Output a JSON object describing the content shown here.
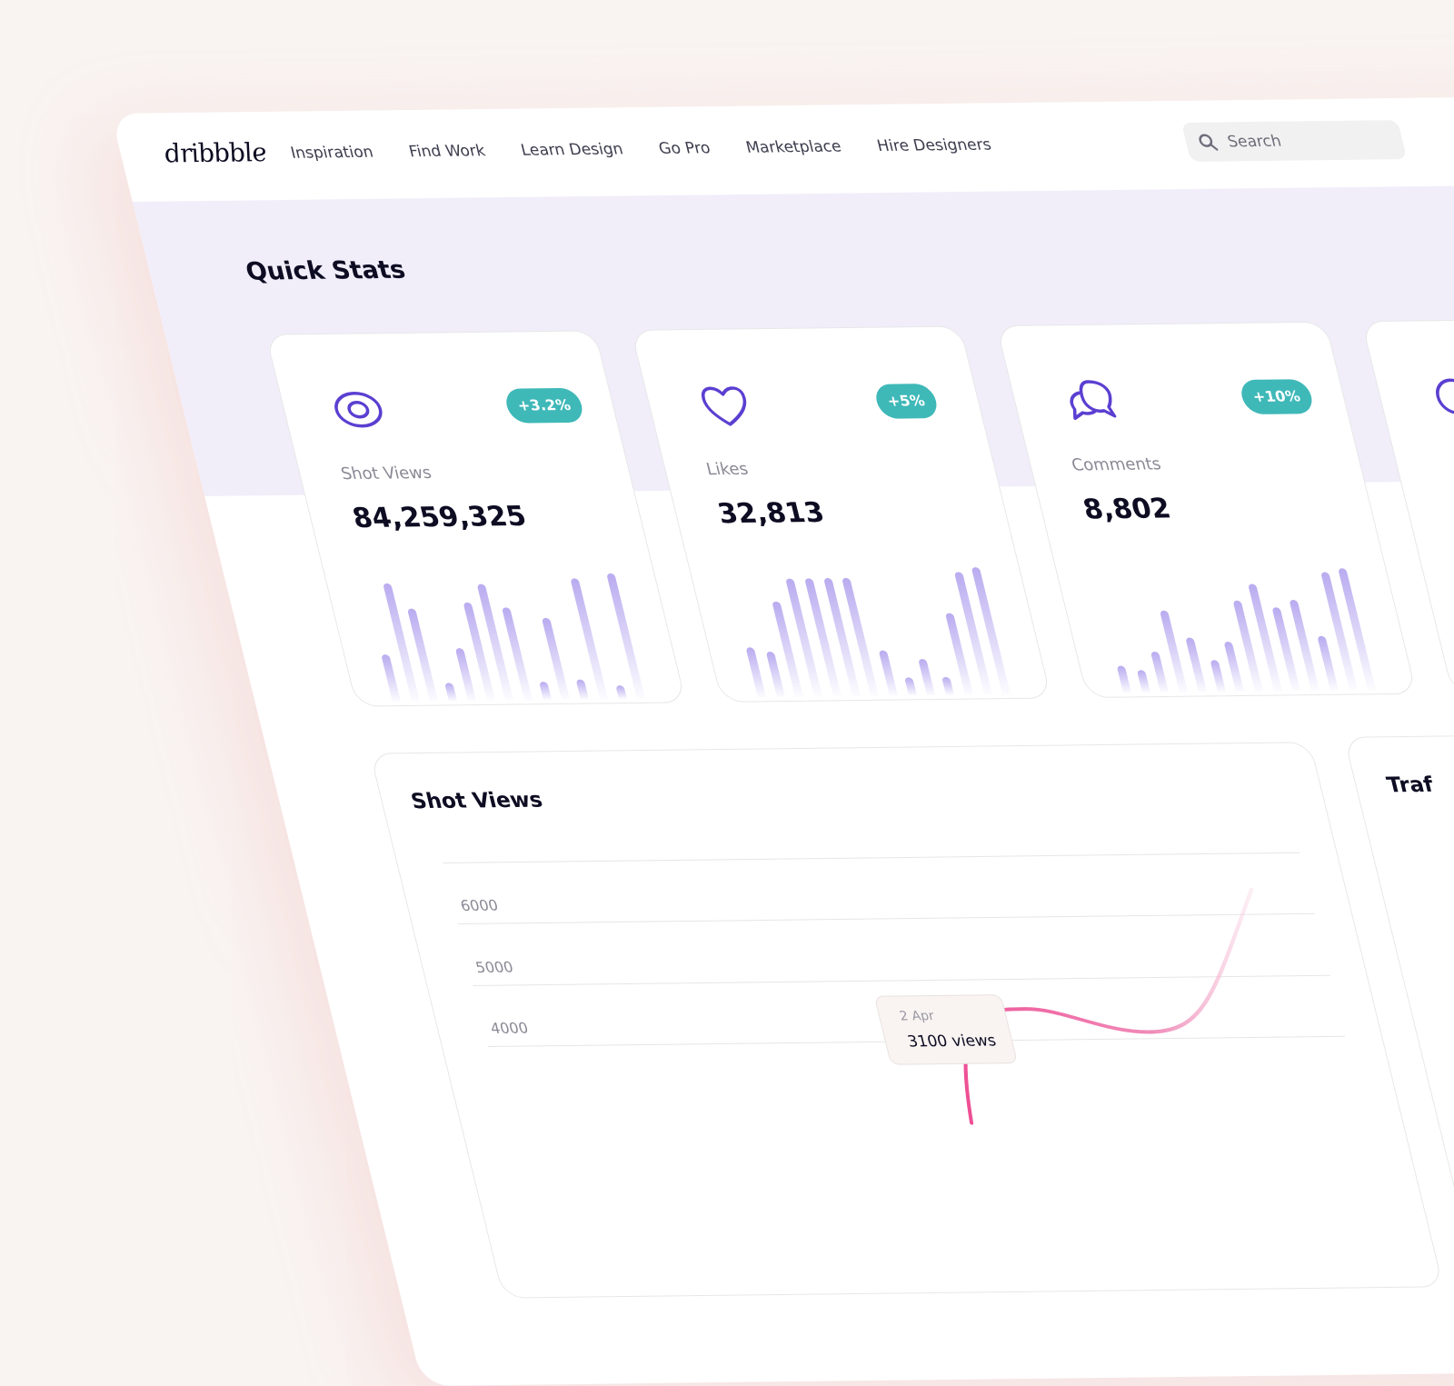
{
  "header": {
    "logo": "dribbble",
    "nav": [
      "Inspiration",
      "Find Work",
      "Learn Design",
      "Go Pro",
      "Marketplace",
      "Hire Designers"
    ],
    "search_placeholder": "Search"
  },
  "quick_stats": {
    "title": "Quick Stats",
    "cards": [
      {
        "icon": "eye-icon",
        "badge": "+3.2%",
        "label": "Shot Views",
        "value": "84,259,325",
        "bars": [
          52,
          130,
          102,
          20,
          58,
          108,
          128,
          102,
          20,
          90,
          22,
          133,
          15,
          138
        ]
      },
      {
        "icon": "heart-icon",
        "badge": "+5%",
        "label": "Likes",
        "value": "32,813",
        "bars": [
          55,
          50,
          105,
          130,
          130,
          130,
          130,
          50,
          20,
          40,
          20,
          90,
          135,
          140
        ]
      },
      {
        "icon": "comments-icon",
        "badge": "+10%",
        "label": "Comments",
        "value": "8,802",
        "bars": [
          30,
          25,
          45,
          90,
          60,
          35,
          55,
          100,
          118,
          92,
          100,
          60,
          130,
          134
        ]
      }
    ]
  },
  "colors": {
    "accent": "#5b3fd1",
    "badge": "#3fb8b8",
    "bar": "#b9abf0",
    "line": "#ee6fa4"
  },
  "chart_data": {
    "type": "line",
    "title": "Shot Views",
    "y_ticks": [
      "6000",
      "5000",
      "4000"
    ],
    "ylim": [
      3000,
      7000
    ],
    "series": [
      {
        "values": [
          3100,
          4500,
          4100,
          6400
        ]
      }
    ],
    "tooltip": {
      "date": "2 Apr",
      "value": "3100 views"
    }
  },
  "traffic": {
    "title": "Traf"
  }
}
